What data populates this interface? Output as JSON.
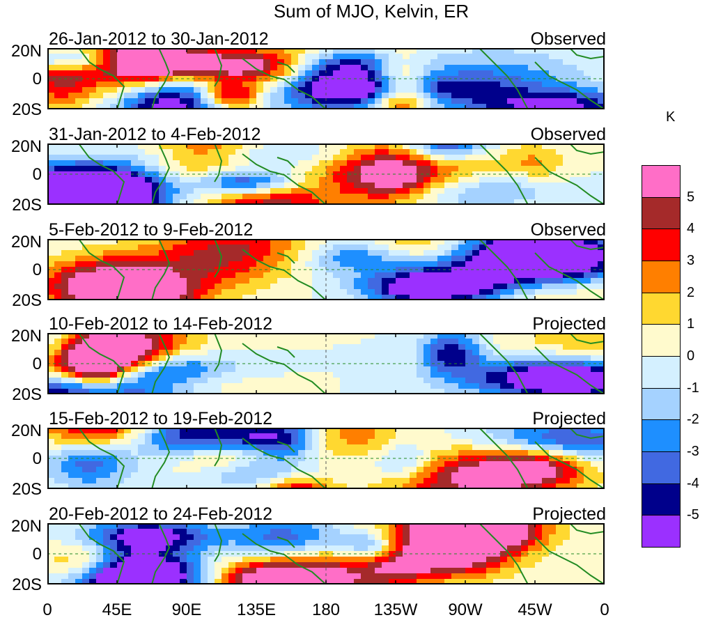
{
  "title": "Sum of MJO, Kelvin, ER",
  "units_label": "K",
  "panels": [
    {
      "date_range": "26-Jan-2012 to 30-Jan-2012",
      "status": "Observed"
    },
    {
      "date_range": "31-Jan-2012 to 4-Feb-2012",
      "status": "Observed"
    },
    {
      "date_range": "5-Feb-2012 to 9-Feb-2012",
      "status": "Observed"
    },
    {
      "date_range": "10-Feb-2012 to 14-Feb-2012",
      "status": "Projected"
    },
    {
      "date_range": "15-Feb-2012 to 19-Feb-2012",
      "status": "Projected"
    },
    {
      "date_range": "20-Feb-2012 to 24-Feb-2012",
      "status": "Projected"
    }
  ],
  "y_ticks": [
    "20N",
    "0",
    "20S"
  ],
  "x_ticks": [
    "0",
    "45E",
    "90E",
    "135E",
    "180",
    "135W",
    "90W",
    "45W",
    "0"
  ],
  "colorbar": {
    "labels": [
      "5",
      "4",
      "3",
      "2",
      "1",
      "0",
      "-1",
      "-2",
      "-3",
      "-4",
      "-5"
    ],
    "colors": [
      "#ff6ec7",
      "#a52a2a",
      "#ff0000",
      "#ff7f00",
      "#ffd830",
      "#fffacd",
      "#d4f0ff",
      "#a5d2ff",
      "#1e8fff",
      "#4169e1",
      "#00008b",
      "#9b30ff"
    ]
  }
}
